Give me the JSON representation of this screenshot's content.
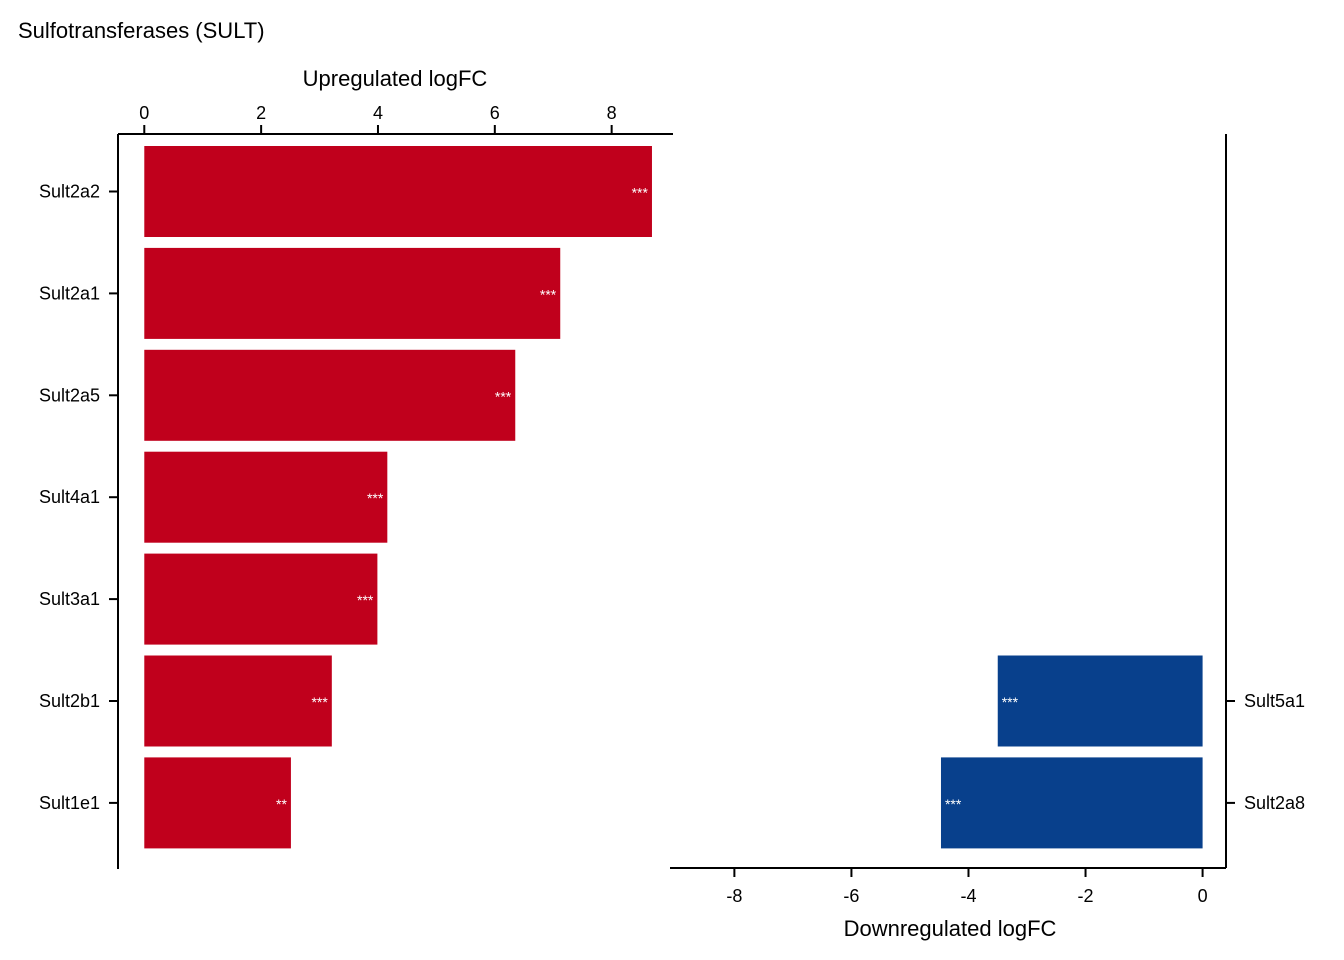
{
  "chart_data": {
    "type": "bar",
    "title": "Sulfotransferases (SULT)",
    "upregulated": {
      "axis_label": "Upregulated logFC",
      "xlim": [
        -0.45,
        9.05
      ],
      "ticks": [
        0,
        2,
        4,
        6,
        8
      ],
      "tick_labels": [
        "0",
        "2",
        "4",
        "6",
        "8"
      ],
      "color": "#c0001c",
      "categories": [
        "Sult2a2",
        "Sult2a1",
        "Sult2a5",
        "Sult4a1",
        "Sult3a1",
        "Sult2b1",
        "Sult1e1"
      ],
      "values": [
        8.69,
        7.12,
        6.35,
        4.16,
        3.99,
        3.21,
        2.51
      ],
      "significance": [
        "***",
        "***",
        "***",
        "***",
        "***",
        "***",
        "**"
      ]
    },
    "downregulated": {
      "axis_label": "Downregulated logFC",
      "xlim": [
        -9.1,
        0.4
      ],
      "ticks": [
        -8,
        -6,
        -4,
        -2,
        0
      ],
      "tick_labels": [
        "-8",
        "-6",
        "-4",
        "-2",
        "0"
      ],
      "color": "#08408c",
      "categories": [
        "Sult5a1",
        "Sult2a8"
      ],
      "values": [
        -3.5,
        -4.47
      ],
      "significance": [
        "***",
        "***"
      ]
    }
  }
}
